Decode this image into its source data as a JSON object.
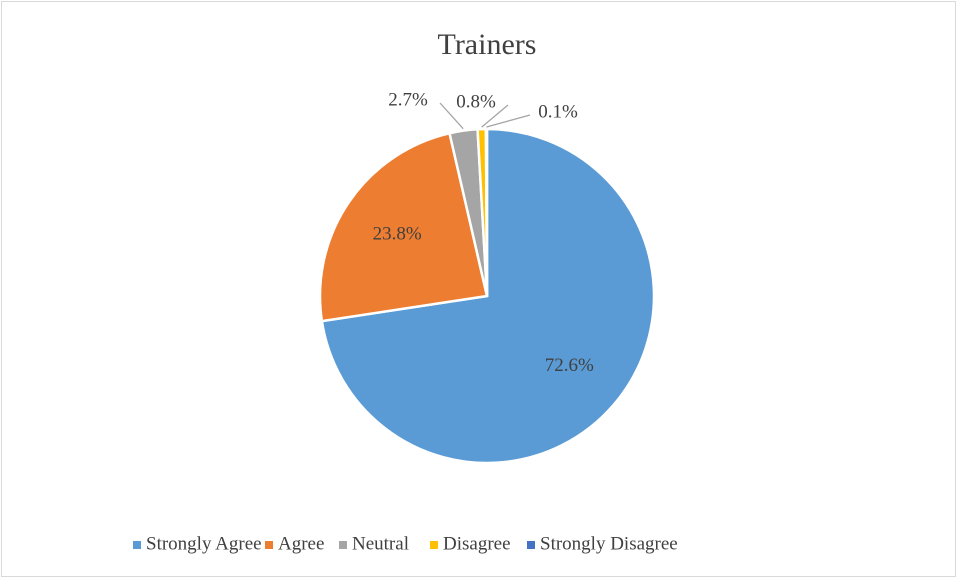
{
  "chart_data": {
    "type": "pie",
    "title": "Trainers",
    "categories": [
      "Strongly Agree",
      "Agree",
      "Neutral",
      "Disagree",
      "Strongly Disagree"
    ],
    "values": [
      72.6,
      23.8,
      2.7,
      0.8,
      0.1
    ],
    "value_labels": [
      "72.6%",
      "23.8%",
      "2.7%",
      "0.8%",
      "0.1%"
    ],
    "colors": [
      "#5b9bd5",
      "#ed7d31",
      "#a5a5a5",
      "#ffc000",
      "#4472c4"
    ],
    "legend": "bottom"
  }
}
